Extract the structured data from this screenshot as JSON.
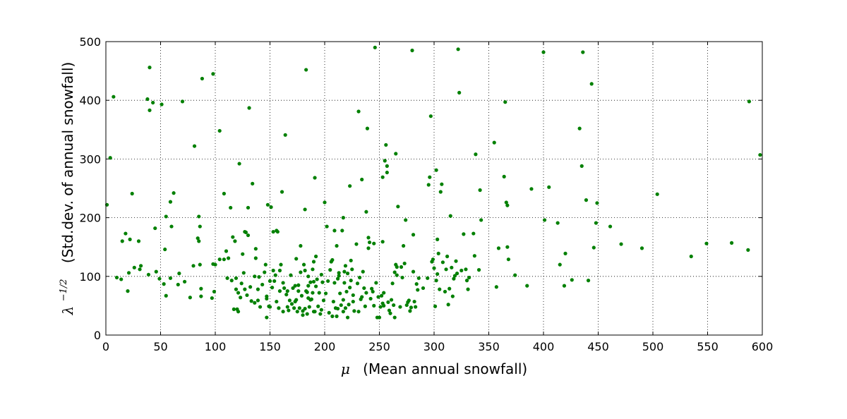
{
  "chart_data": {
    "type": "scatter",
    "xlabel": {
      "symbol": "μ",
      "text": "(Mean annual snowfall)"
    },
    "ylabel": {
      "symbol_base": "λ",
      "symbol_exp": "−1/2",
      "text": "(Std.dev. of annual snowfall)"
    },
    "xlim": [
      0,
      600
    ],
    "ylim": [
      0,
      500
    ],
    "xticks": [
      0,
      50,
      100,
      150,
      200,
      250,
      300,
      350,
      400,
      450,
      500,
      550,
      600
    ],
    "yticks": [
      0,
      100,
      200,
      300,
      400,
      500
    ],
    "grid": true,
    "marker_color": "#008000",
    "points": [
      [
        1,
        222
      ],
      [
        4,
        302
      ],
      [
        7,
        406
      ],
      [
        10,
        98
      ],
      [
        14,
        95
      ],
      [
        15,
        160
      ],
      [
        18,
        173
      ],
      [
        20,
        75
      ],
      [
        21,
        106
      ],
      [
        22,
        163
      ],
      [
        24,
        241
      ],
      [
        26,
        115
      ],
      [
        30,
        160
      ],
      [
        31,
        112
      ],
      [
        32,
        118
      ],
      [
        38,
        402
      ],
      [
        39,
        103
      ],
      [
        40,
        456
      ],
      [
        40,
        383
      ],
      [
        43,
        396
      ],
      [
        45,
        182
      ],
      [
        46,
        108
      ],
      [
        49,
        96
      ],
      [
        51,
        393
      ],
      [
        53,
        87
      ],
      [
        54,
        146
      ],
      [
        55,
        67
      ],
      [
        55,
        202
      ],
      [
        59,
        97
      ],
      [
        59,
        227
      ],
      [
        60,
        185
      ],
      [
        62,
        242
      ],
      [
        66,
        86
      ],
      [
        67,
        105
      ],
      [
        70,
        398
      ],
      [
        72,
        91
      ],
      [
        77,
        64
      ],
      [
        80,
        118
      ],
      [
        81,
        322
      ],
      [
        84,
        165
      ],
      [
        85,
        202
      ],
      [
        85,
        160
      ],
      [
        86,
        120
      ],
      [
        86,
        185
      ],
      [
        87,
        79
      ],
      [
        87,
        66
      ],
      [
        88,
        437
      ],
      [
        97,
        63
      ],
      [
        98,
        121
      ],
      [
        98,
        445
      ],
      [
        99,
        74
      ],
      [
        100,
        120
      ],
      [
        104,
        348
      ],
      [
        104,
        129
      ],
      [
        108,
        129
      ],
      [
        108,
        241
      ],
      [
        110,
        143
      ],
      [
        111,
        97
      ],
      [
        112,
        131
      ],
      [
        114,
        217
      ],
      [
        115,
        93
      ],
      [
        116,
        167
      ],
      [
        117,
        44
      ],
      [
        118,
        160
      ],
      [
        119,
        97
      ],
      [
        119,
        78
      ],
      [
        120,
        44
      ],
      [
        121,
        72
      ],
      [
        121,
        40
      ],
      [
        122,
        292
      ],
      [
        123,
        64
      ],
      [
        124,
        88
      ],
      [
        125,
        138
      ],
      [
        126,
        106
      ],
      [
        127,
        78
      ],
      [
        127,
        176
      ],
      [
        128,
        175
      ],
      [
        129,
        68
      ],
      [
        130,
        170
      ],
      [
        130,
        217
      ],
      [
        131,
        387
      ],
      [
        132,
        82
      ],
      [
        133,
        58
      ],
      [
        134,
        258
      ],
      [
        136,
        55
      ],
      [
        136,
        100
      ],
      [
        137,
        147
      ],
      [
        137,
        131
      ],
      [
        139,
        78
      ],
      [
        139,
        59
      ],
      [
        140,
        99
      ],
      [
        141,
        48
      ],
      [
        143,
        86
      ],
      [
        145,
        107
      ],
      [
        146,
        120
      ],
      [
        147,
        66
      ],
      [
        147,
        62
      ],
      [
        147,
        30
      ],
      [
        148,
        222
      ],
      [
        149,
        49
      ],
      [
        150,
        92
      ],
      [
        150,
        48
      ],
      [
        151,
        218
      ],
      [
        152,
        81
      ],
      [
        153,
        176
      ],
      [
        153,
        110
      ],
      [
        154,
        92
      ],
      [
        155,
        102
      ],
      [
        156,
        57
      ],
      [
        156,
        178
      ],
      [
        157,
        176
      ],
      [
        158,
        46
      ],
      [
        159,
        75
      ],
      [
        159,
        110
      ],
      [
        160,
        120
      ],
      [
        161,
        244
      ],
      [
        162,
        89
      ],
      [
        162,
        40
      ],
      [
        163,
        80
      ],
      [
        164,
        341
      ],
      [
        165,
        69
      ],
      [
        166,
        75
      ],
      [
        166,
        48
      ],
      [
        167,
        42
      ],
      [
        168,
        59
      ],
      [
        169,
        102
      ],
      [
        170,
        53
      ],
      [
        171,
        80
      ],
      [
        172,
        46
      ],
      [
        173,
        84
      ],
      [
        173,
        57
      ],
      [
        174,
        60
      ],
      [
        174,
        130
      ],
      [
        175,
        40
      ],
      [
        176,
        75
      ],
      [
        176,
        85
      ],
      [
        177,
        46
      ],
      [
        178,
        107
      ],
      [
        178,
        152
      ],
      [
        179,
        67
      ],
      [
        180,
        34
      ],
      [
        180,
        41
      ],
      [
        181,
        120
      ],
      [
        182,
        214
      ],
      [
        182,
        45
      ],
      [
        182,
        110
      ],
      [
        183,
        452
      ],
      [
        183,
        75
      ],
      [
        184,
        36
      ],
      [
        184,
        73
      ],
      [
        185,
        84
      ],
      [
        185,
        63
      ],
      [
        185,
        100
      ],
      [
        186,
        48
      ],
      [
        187,
        90
      ],
      [
        187,
        60
      ],
      [
        188,
        61
      ],
      [
        189,
        112
      ],
      [
        189,
        72
      ],
      [
        190,
        91
      ],
      [
        190,
        125
      ],
      [
        190,
        40
      ],
      [
        191,
        268
      ],
      [
        191,
        40
      ],
      [
        192,
        134
      ],
      [
        192,
        83
      ],
      [
        193,
        95
      ],
      [
        194,
        49
      ],
      [
        195,
        72
      ],
      [
        196,
        36
      ],
      [
        197,
        43
      ],
      [
        197,
        103
      ],
      [
        198,
        90
      ],
      [
        199,
        59
      ],
      [
        200,
        226
      ],
      [
        201,
        71
      ],
      [
        202,
        185
      ],
      [
        203,
        92
      ],
      [
        204,
        38
      ],
      [
        205,
        111
      ],
      [
        206,
        125
      ],
      [
        207,
        128
      ],
      [
        207,
        32
      ],
      [
        208,
        57
      ],
      [
        209,
        89
      ],
      [
        209,
        178
      ],
      [
        210,
        46
      ],
      [
        211,
        32
      ],
      [
        211,
        152
      ],
      [
        212,
        96
      ],
      [
        212,
        45
      ],
      [
        213,
        106
      ],
      [
        213,
        101
      ],
      [
        214,
        71
      ],
      [
        215,
        51
      ],
      [
        216,
        178
      ],
      [
        217,
        40
      ],
      [
        217,
        60
      ],
      [
        217,
        200
      ],
      [
        218,
        89
      ],
      [
        218,
        108
      ],
      [
        219,
        46
      ],
      [
        219,
        118
      ],
      [
        220,
        74
      ],
      [
        221,
        30
      ],
      [
        221,
        105
      ],
      [
        222,
        52
      ],
      [
        223,
        254
      ],
      [
        223,
        81
      ],
      [
        224,
        93
      ],
      [
        224,
        127
      ],
      [
        225,
        112
      ],
      [
        226,
        57
      ],
      [
        226,
        68
      ],
      [
        227,
        41
      ],
      [
        229,
        155
      ],
      [
        230,
        88
      ],
      [
        231,
        381
      ],
      [
        231,
        40
      ],
      [
        232,
        98
      ],
      [
        233,
        61
      ],
      [
        234,
        265
      ],
      [
        234,
        65
      ],
      [
        235,
        108
      ],
      [
        236,
        80
      ],
      [
        237,
        49
      ],
      [
        238,
        210
      ],
      [
        238,
        72
      ],
      [
        239,
        352
      ],
      [
        240,
        166
      ],
      [
        240,
        148
      ],
      [
        241,
        158
      ],
      [
        242,
        62
      ],
      [
        243,
        79
      ],
      [
        244,
        74
      ],
      [
        245,
        156
      ],
      [
        245,
        50
      ],
      [
        246,
        490
      ],
      [
        247,
        89
      ],
      [
        248,
        30
      ],
      [
        249,
        65
      ],
      [
        250,
        30
      ],
      [
        251,
        48
      ],
      [
        252,
        67
      ],
      [
        253,
        269
      ],
      [
        253,
        159
      ],
      [
        253,
        54
      ],
      [
        254,
        50
      ],
      [
        254,
        72
      ],
      [
        255,
        297
      ],
      [
        256,
        324
      ],
      [
        257,
        277
      ],
      [
        257,
        288
      ],
      [
        258,
        56
      ],
      [
        259,
        42
      ],
      [
        260,
        37
      ],
      [
        261,
        60
      ],
      [
        262,
        88
      ],
      [
        263,
        51
      ],
      [
        264,
        30
      ],
      [
        264,
        107
      ],
      [
        265,
        309
      ],
      [
        265,
        120
      ],
      [
        266,
        102
      ],
      [
        266,
        116
      ],
      [
        267,
        219
      ],
      [
        269,
        48
      ],
      [
        270,
        116
      ],
      [
        271,
        98
      ],
      [
        272,
        152
      ],
      [
        273,
        122
      ],
      [
        274,
        196
      ],
      [
        275,
        51
      ],
      [
        276,
        56
      ],
      [
        277,
        59
      ],
      [
        278,
        41
      ],
      [
        279,
        47
      ],
      [
        280,
        485
      ],
      [
        281,
        171
      ],
      [
        281,
        108
      ],
      [
        282,
        57
      ],
      [
        283,
        48
      ],
      [
        284,
        87
      ],
      [
        285,
        77
      ],
      [
        286,
        97
      ],
      [
        290,
        80
      ],
      [
        294,
        97
      ],
      [
        295,
        256
      ],
      [
        296,
        269
      ],
      [
        297,
        373
      ],
      [
        298,
        125
      ],
      [
        299,
        129
      ],
      [
        300,
        114
      ],
      [
        301,
        49
      ],
      [
        302,
        281
      ],
      [
        302,
        93
      ],
      [
        303,
        163
      ],
      [
        303,
        104
      ],
      [
        304,
        139
      ],
      [
        305,
        78
      ],
      [
        306,
        244
      ],
      [
        307,
        257
      ],
      [
        308,
        124
      ],
      [
        310,
        74
      ],
      [
        311,
        112
      ],
      [
        312,
        134
      ],
      [
        313,
        52
      ],
      [
        314,
        79
      ],
      [
        315,
        203
      ],
      [
        316,
        115
      ],
      [
        317,
        66
      ],
      [
        318,
        96
      ],
      [
        319,
        101
      ],
      [
        320,
        126
      ],
      [
        321,
        105
      ],
      [
        322,
        487
      ],
      [
        323,
        413
      ],
      [
        325,
        110
      ],
      [
        327,
        172
      ],
      [
        329,
        112
      ],
      [
        330,
        93
      ],
      [
        331,
        78
      ],
      [
        332,
        98
      ],
      [
        336,
        173
      ],
      [
        337,
        135
      ],
      [
        338,
        308
      ],
      [
        341,
        111
      ],
      [
        342,
        247
      ],
      [
        343,
        196
      ],
      [
        355,
        328
      ],
      [
        357,
        82
      ],
      [
        359,
        148
      ],
      [
        364,
        270
      ],
      [
        365,
        397
      ],
      [
        366,
        226
      ],
      [
        367,
        221
      ],
      [
        367,
        150
      ],
      [
        368,
        129
      ],
      [
        374,
        102
      ],
      [
        385,
        84
      ],
      [
        389,
        249
      ],
      [
        400,
        482
      ],
      [
        401,
        196
      ],
      [
        405,
        252
      ],
      [
        413,
        191
      ],
      [
        415,
        120
      ],
      [
        419,
        84
      ],
      [
        420,
        139
      ],
      [
        426,
        94
      ],
      [
        433,
        352
      ],
      [
        435,
        288
      ],
      [
        436,
        482
      ],
      [
        439,
        230
      ],
      [
        441,
        93
      ],
      [
        444,
        428
      ],
      [
        446,
        149
      ],
      [
        448,
        191
      ],
      [
        449,
        225
      ],
      [
        461,
        185
      ],
      [
        471,
        155
      ],
      [
        490,
        148
      ],
      [
        504,
        240
      ],
      [
        535,
        134
      ],
      [
        549,
        156
      ],
      [
        572,
        157
      ],
      [
        587,
        145
      ],
      [
        588,
        398
      ],
      [
        598,
        307
      ]
    ]
  }
}
